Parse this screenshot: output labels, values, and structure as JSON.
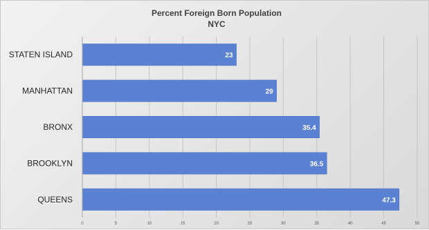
{
  "chart_data": {
    "type": "bar",
    "orientation": "horizontal",
    "title": "Percent Foreign Born Population",
    "subtitle": "NYC",
    "categories": [
      "STATEN ISLAND",
      "MANHATTAN",
      "BRONX",
      "BROOKLYN",
      "QUEENS"
    ],
    "values": [
      23,
      29,
      35.4,
      36.5,
      47.3
    ],
    "data_labels": [
      "23",
      "29",
      "35.4",
      "36.5",
      "47.3"
    ],
    "xlim": [
      0,
      50
    ],
    "x_ticks": [
      "0",
      "5",
      "10",
      "15",
      "20",
      "25",
      "30",
      "35",
      "40",
      "45",
      "50"
    ],
    "grid": true,
    "legend": "none",
    "bar_color": "#5b82d2"
  }
}
